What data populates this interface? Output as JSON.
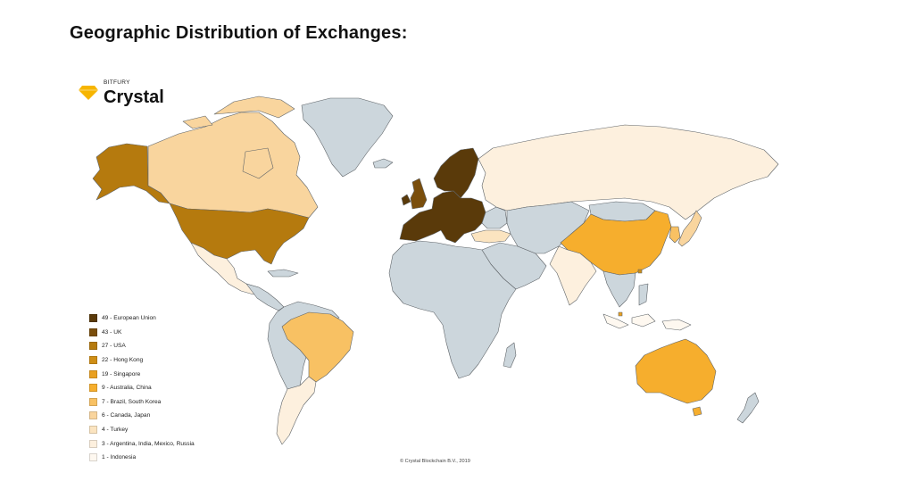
{
  "title": "Geographic Distribution of Exchanges:",
  "brand": {
    "supertitle": "BITFURY",
    "name": "Crystal",
    "icon": "diamond-icon",
    "color": "#F7B500"
  },
  "copyright": "© Crystal Blockchain B.V., 2019",
  "colors": {
    "no_data": "#CCD6DC",
    "border": "#5F6468",
    "ocean": "#FFFFFF"
  },
  "legend": [
    {
      "count": 49,
      "label": "49 - European Union",
      "color": "#5A3A0A"
    },
    {
      "count": 43,
      "label": "43 - UK",
      "color": "#7A4E0C"
    },
    {
      "count": 27,
      "label": "27 - USA",
      "color": "#B57A0E"
    },
    {
      "count": 22,
      "label": "22 - Hong Kong",
      "color": "#CF8E16"
    },
    {
      "count": 19,
      "label": "19 - Singapore",
      "color": "#E9A020"
    },
    {
      "count": 9,
      "label": "9 - Australia, China",
      "color": "#F6AE2D"
    },
    {
      "count": 7,
      "label": "7 - Brazil, South Korea",
      "color": "#F8C163"
    },
    {
      "count": 6,
      "label": "6 - Canada, Japan",
      "color": "#F9D59E"
    },
    {
      "count": 4,
      "label": "4 - Turkey",
      "color": "#FBE4C0"
    },
    {
      "count": 3,
      "label": "3 - Argentina, India, Mexico, Russia",
      "color": "#FDF0DE"
    },
    {
      "count": 1,
      "label": "1 - Indonesia",
      "color": "#FEF8F0"
    }
  ],
  "regions": [
    {
      "id": "alaska",
      "count": 27
    },
    {
      "id": "canada",
      "count": 6
    },
    {
      "id": "greenland",
      "count": 0
    },
    {
      "id": "usa",
      "count": 27
    },
    {
      "id": "mexico",
      "count": 3
    },
    {
      "id": "central-america",
      "count": 0
    },
    {
      "id": "south-america",
      "count": 0
    },
    {
      "id": "brazil",
      "count": 7
    },
    {
      "id": "argentina",
      "count": 3
    },
    {
      "id": "iceland",
      "count": 0
    },
    {
      "id": "uk",
      "count": 43
    },
    {
      "id": "ireland",
      "count": 49
    },
    {
      "id": "european-union",
      "count": 49
    },
    {
      "id": "scandinavia",
      "count": 49
    },
    {
      "id": "eastern-europe",
      "count": 0
    },
    {
      "id": "turkey",
      "count": 4
    },
    {
      "id": "russia",
      "count": 3
    },
    {
      "id": "africa",
      "count": 0
    },
    {
      "id": "madagascar",
      "count": 0
    },
    {
      "id": "middle-east",
      "count": 0
    },
    {
      "id": "central-asia",
      "count": 0
    },
    {
      "id": "mongolia",
      "count": 0
    },
    {
      "id": "china",
      "count": 9
    },
    {
      "id": "india",
      "count": 3
    },
    {
      "id": "southeast-asia",
      "count": 0
    },
    {
      "id": "korea",
      "count": 7
    },
    {
      "id": "japan",
      "count": 6
    },
    {
      "id": "hong-kong",
      "count": 22
    },
    {
      "id": "singapore",
      "count": 19
    },
    {
      "id": "indonesia",
      "count": 1
    },
    {
      "id": "australia",
      "count": 9
    },
    {
      "id": "new-zealand",
      "count": 0
    }
  ]
}
